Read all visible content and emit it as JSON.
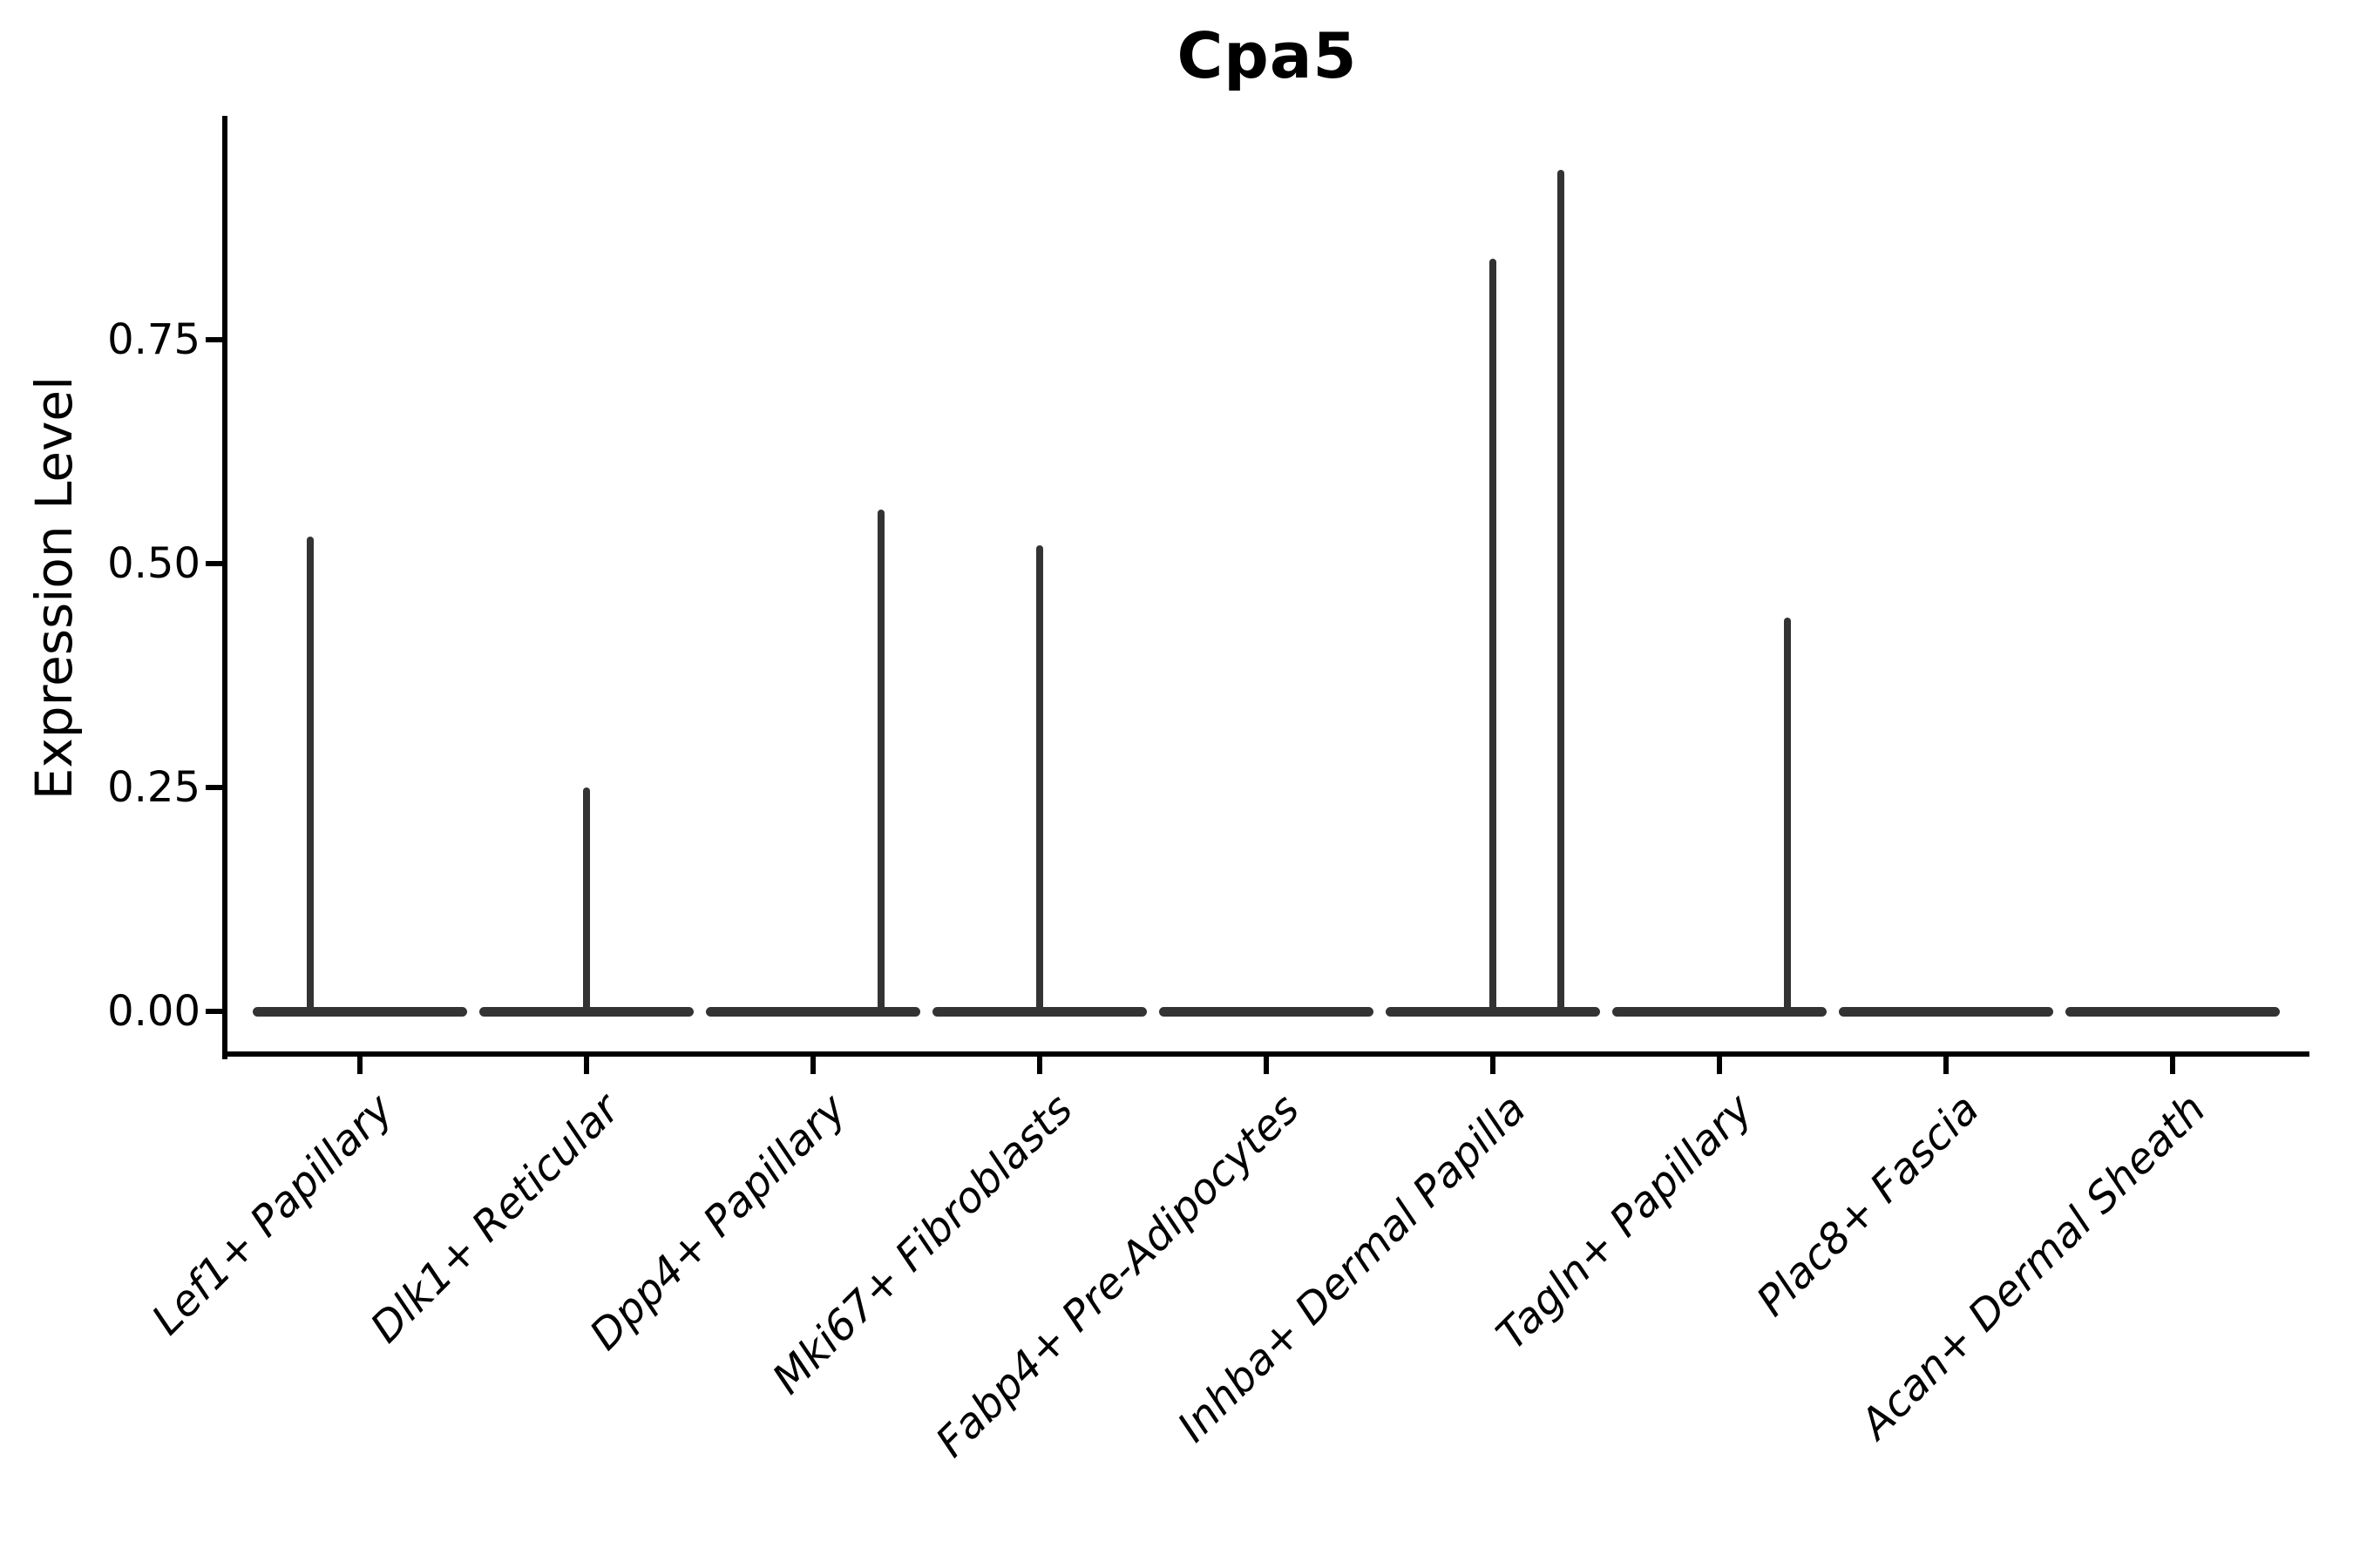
{
  "title": "Cpa5",
  "axes": {
    "ylabel": "Expression Level",
    "yticks": [
      {
        "label": "0.00",
        "value": 0.0
      },
      {
        "label": "0.25",
        "value": 0.25
      },
      {
        "label": "0.50",
        "value": 0.5
      },
      {
        "label": "0.75",
        "value": 0.75
      }
    ]
  },
  "chart_data": {
    "type": "violin",
    "title": "Cpa5",
    "xlabel": "",
    "ylabel": "Expression Level",
    "ylim": [
      0,
      1.0
    ],
    "yticks": [
      0.0,
      0.25,
      0.5,
      0.75
    ],
    "grid": false,
    "legend_position": "none",
    "violin_color": "#333333",
    "axis_color": "#000000",
    "baseline_value": 0.0,
    "description": "Violin plot of Cpa5 expression per fibroblast subtype; nearly all cells at 0 giving wide flat bases with thin spikes up to the maximum expressing cells.",
    "categories": [
      "Lef1+ Papillary",
      "Dlk1+ Reticular",
      "Dpp4+ Papillary",
      "Mki67+ Fibroblasts",
      "Fabp4+ Pre-Adipocytes",
      "Inhba+ Dermal Papilla",
      "Tagln+ Papillary",
      "Plac8+ Fascia",
      "Acan+ Dermal Sheath"
    ],
    "series": [
      {
        "category": "Lef1+ Papillary",
        "max_expression": 0.53,
        "spikes": [
          {
            "value": 0.53,
            "offset": -0.22
          }
        ]
      },
      {
        "category": "Dlk1+ Reticular",
        "max_expression": 0.25,
        "spikes": [
          {
            "value": 0.25,
            "offset": 0.0
          }
        ]
      },
      {
        "category": "Dpp4+ Papillary",
        "max_expression": 0.56,
        "spikes": [
          {
            "value": 0.56,
            "offset": 0.3
          }
        ]
      },
      {
        "category": "Mki67+ Fibroblasts",
        "max_expression": 0.52,
        "spikes": [
          {
            "value": 0.52,
            "offset": 0.0
          }
        ]
      },
      {
        "category": "Fabp4+ Pre-Adipocytes",
        "max_expression": 0.0,
        "spikes": []
      },
      {
        "category": "Inhba+ Dermal Papilla",
        "max_expression": 0.94,
        "spikes": [
          {
            "value": 0.84,
            "offset": 0.0
          },
          {
            "value": 0.94,
            "offset": 0.3
          }
        ]
      },
      {
        "category": "Tagln+ Papillary",
        "max_expression": 0.44,
        "spikes": [
          {
            "value": 0.44,
            "offset": 0.3
          }
        ]
      },
      {
        "category": "Plac8+ Fascia",
        "max_expression": 0.0,
        "spikes": []
      },
      {
        "category": "Acan+ Dermal Sheath",
        "max_expression": 0.0,
        "spikes": []
      }
    ]
  }
}
